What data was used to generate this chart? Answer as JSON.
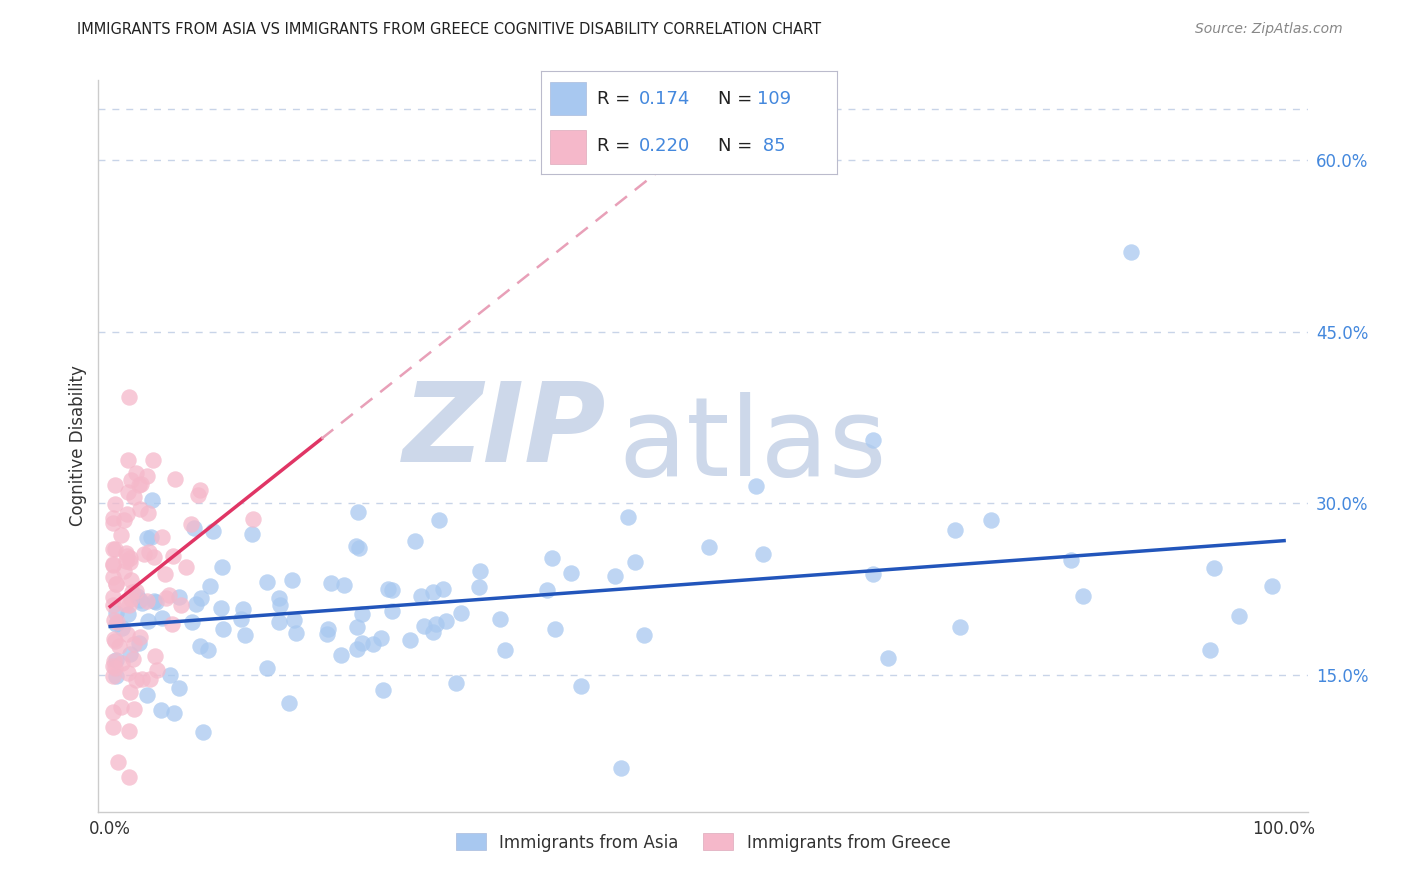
{
  "title": "IMMIGRANTS FROM ASIA VS IMMIGRANTS FROM GREECE COGNITIVE DISABILITY CORRELATION CHART",
  "source": "Source: ZipAtlas.com",
  "ylabel": "Cognitive Disability",
  "right_yticks": [
    0.15,
    0.3,
    0.45,
    0.6
  ],
  "right_yticklabels": [
    "15.0%",
    "30.0%",
    "45.0%",
    "60.0%"
  ],
  "xlim": [
    -0.01,
    1.02
  ],
  "ylim": [
    0.03,
    0.67
  ],
  "asia_R": 0.174,
  "asia_N": 109,
  "greece_R": 0.22,
  "greece_N": 85,
  "asia_color": "#a8c8f0",
  "greece_color": "#f5b8ca",
  "asia_line_color": "#2255bb",
  "greece_line_color": "#e03565",
  "greece_line_dashed_color": "#e8a0b8",
  "watermark_zip": "ZIP",
  "watermark_atlas": "atlas",
  "watermark_color": "#cdd8ea",
  "legend_labels": [
    "Immigrants from Asia",
    "Immigrants from Greece"
  ],
  "background_color": "#ffffff",
  "grid_color": "#c8d4e8",
  "title_color": "#222222",
  "source_color": "#888888",
  "axis_label_color": "#333333",
  "tick_color_right": "#4488dd",
  "legend_text_color": "#222222",
  "legend_value_color": "#4488dd"
}
